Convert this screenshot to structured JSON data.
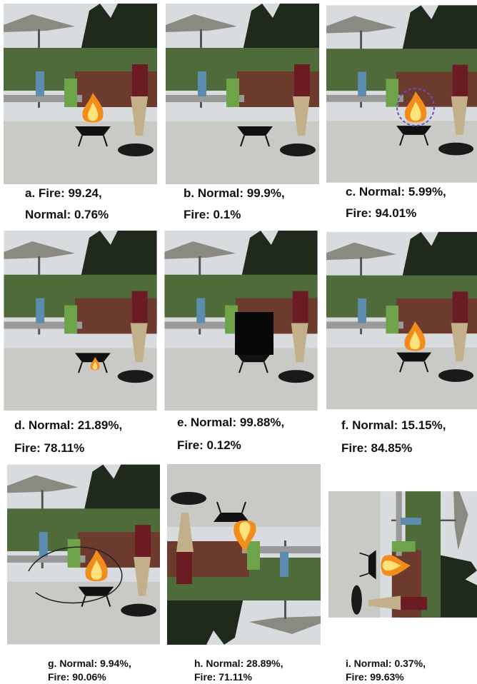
{
  "panels": [
    {
      "caption_lines": [
        "a. Fire: 99.24,",
        "Normal: 0.76%"
      ]
    },
    {
      "caption_lines": [
        "b. Normal: 99.9%,",
        "Fire: 0.1%"
      ]
    },
    {
      "caption_lines": [
        "c. Normal: 5.99%,",
        "Fire: 94.01%"
      ]
    },
    {
      "caption_lines": [
        "d. Normal: 21.89%,",
        "Fire: 78.11%"
      ]
    },
    {
      "caption_lines": [
        "e. Normal: 99.88%,",
        "Fire: 0.12%"
      ]
    },
    {
      "caption_lines": [
        "f. Normal: 15.15%,",
        "Fire: 84.85%"
      ]
    },
    {
      "caption_lines": [
        "g. Normal: 9.94%,",
        "Fire: 90.06%"
      ]
    },
    {
      "caption_lines": [
        "h. Normal: 28.89%,",
        "Fire: 71.11%"
      ]
    },
    {
      "caption_lines": [
        "i. Normal: 0.37%,",
        "Fire: 99.63%"
      ]
    }
  ]
}
